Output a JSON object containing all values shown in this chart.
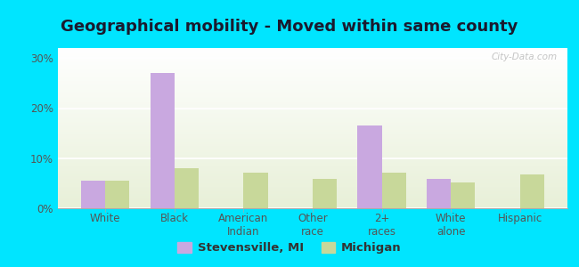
{
  "title": "Geographical mobility - Moved within same county",
  "categories": [
    "White",
    "Black",
    "American\nIndian",
    "Other\nrace",
    "2+\nraces",
    "White\nalone",
    "Hispanic"
  ],
  "stevensville_values": [
    5.5,
    27.0,
    0.0,
    0.0,
    16.5,
    5.8,
    0.0
  ],
  "michigan_values": [
    5.5,
    8.0,
    7.2,
    5.8,
    7.2,
    5.2,
    6.8
  ],
  "bar_color_stevensville": "#c9a8e0",
  "bar_color_michigan": "#c8d89a",
  "background_outer": "#00e5ff",
  "background_inner": "#f2f7e8",
  "ylim": [
    0,
    32
  ],
  "yticks": [
    0,
    10,
    20,
    30
  ],
  "ytick_labels": [
    "0%",
    "10%",
    "20%",
    "30%"
  ],
  "legend_label_1": "Stevensville, MI",
  "legend_label_2": "Michigan",
  "bar_width": 0.35,
  "title_fontsize": 13,
  "tick_fontsize": 8.5,
  "legend_fontsize": 9.5,
  "watermark": "City-Data.com"
}
